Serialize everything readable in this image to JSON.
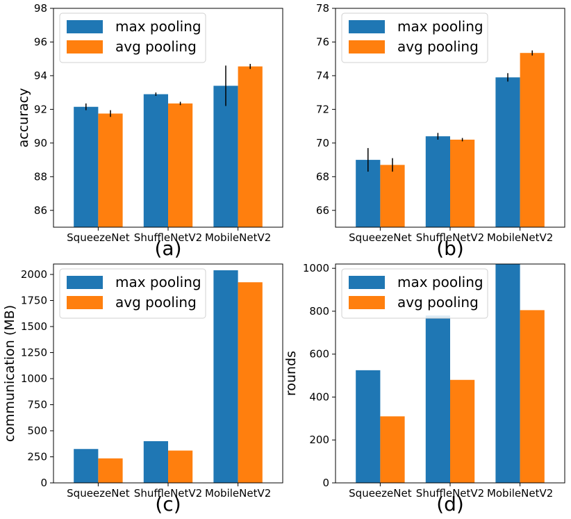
{
  "chart_data": [
    {
      "type": "bar",
      "panel_label": "(a)",
      "categories": [
        "SqueezeNet",
        "ShuffleNetV2",
        "MobileNetV2"
      ],
      "series": [
        {
          "name": "max pooling",
          "color": "#1f77b4",
          "values": [
            92.15,
            92.9,
            93.4
          ],
          "errors": [
            0.2,
            0.1,
            1.2
          ]
        },
        {
          "name": "avg pooling",
          "color": "#ff7f0e",
          "values": [
            91.75,
            92.35,
            94.55
          ],
          "errors": [
            0.2,
            0.1,
            0.15
          ]
        }
      ],
      "ylabel": "accuracy",
      "ylim": [
        85,
        98
      ],
      "yticks": [
        86,
        88,
        90,
        92,
        94,
        96,
        98
      ],
      "legend": "top-left"
    },
    {
      "type": "bar",
      "panel_label": "(b)",
      "categories": [
        "SqueezeNet",
        "ShuffleNetV2",
        "MobileNetV2"
      ],
      "series": [
        {
          "name": "max pooling",
          "color": "#1f77b4",
          "values": [
            69.0,
            70.4,
            73.9
          ],
          "errors": [
            0.7,
            0.2,
            0.25
          ]
        },
        {
          "name": "avg pooling",
          "color": "#ff7f0e",
          "values": [
            68.7,
            70.2,
            75.35
          ],
          "errors": [
            0.4,
            0.1,
            0.15
          ]
        }
      ],
      "ylabel": "",
      "ylim": [
        65,
        78
      ],
      "yticks": [
        66,
        68,
        70,
        72,
        74,
        76,
        78
      ],
      "legend": "top-left"
    },
    {
      "type": "bar",
      "panel_label": "(c)",
      "categories": [
        "SqueezeNet",
        "ShuffleNetV2",
        "MobileNetV2"
      ],
      "series": [
        {
          "name": "max pooling",
          "color": "#1f77b4",
          "values": [
            325,
            400,
            2040
          ]
        },
        {
          "name": "avg pooling",
          "color": "#ff7f0e",
          "values": [
            235,
            310,
            1925
          ]
        }
      ],
      "ylabel": "communication (MB)",
      "ylim": [
        0,
        2100
      ],
      "yticks": [
        0,
        250,
        500,
        750,
        1000,
        1250,
        1500,
        1750,
        2000
      ],
      "legend": "top-left"
    },
    {
      "type": "bar",
      "panel_label": "(d)",
      "categories": [
        "SqueezeNet",
        "ShuffleNetV2",
        "MobileNetV2"
      ],
      "series": [
        {
          "name": "max pooling",
          "color": "#1f77b4",
          "values": [
            525,
            780,
            1020
          ]
        },
        {
          "name": "avg pooling",
          "color": "#ff7f0e",
          "values": [
            310,
            480,
            805
          ]
        }
      ],
      "ylabel": "rounds",
      "ylim": [
        0,
        1020
      ],
      "yticks": [
        0,
        200,
        400,
        600,
        800,
        1000
      ],
      "legend": "top-left"
    }
  ]
}
